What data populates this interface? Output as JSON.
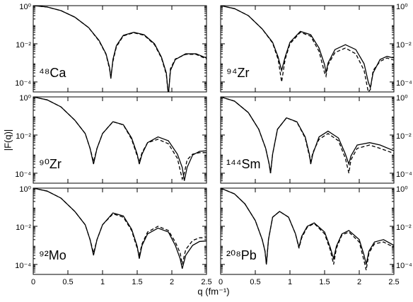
{
  "xlabel": "q (fm⁻¹)",
  "ylabel": "|F(q)|",
  "chart_data": [
    {
      "type": "line",
      "annotation": "⁴⁸Ca",
      "yscale": "log",
      "ytick_side": "left",
      "xtick_labels": false,
      "xlim": [
        0,
        2.5
      ],
      "ylim": [
        3e-05,
        1
      ],
      "xticks": [
        0,
        0.5,
        1,
        1.5,
        2,
        2.5
      ],
      "yticks": [
        {
          "value": 1,
          "label": "10⁰"
        },
        {
          "value": 0.01,
          "label": "10⁻²"
        },
        {
          "value": 0.0001,
          "label": "10⁻⁴"
        }
      ],
      "x": [
        0,
        0.2,
        0.4,
        0.6,
        0.8,
        0.95,
        1.05,
        1.1,
        1.12,
        1.15,
        1.2,
        1.3,
        1.45,
        1.6,
        1.75,
        1.85,
        1.92,
        1.95,
        1.98,
        2.05,
        2.2,
        2.35,
        2.5
      ],
      "series": [
        {
          "color": "#000000",
          "style": "solid",
          "values": [
            1,
            0.85,
            0.55,
            0.25,
            0.07,
            0.015,
            0.003,
            0.0006,
            0.00015,
            0.0015,
            0.008,
            0.028,
            0.04,
            0.03,
            0.01,
            0.002,
            0.0003,
            2e-05,
            0.0004,
            0.0015,
            0.003,
            0.003,
            0.0018
          ]
        },
        {
          "color": "#000000",
          "style": "dashed",
          "values": [
            1,
            0.85,
            0.55,
            0.25,
            0.07,
            0.014,
            0.0028,
            0.0005,
            0.0002,
            0.0012,
            0.007,
            0.026,
            0.038,
            0.028,
            0.009,
            0.0018,
            0.00025,
            2e-05,
            0.0005,
            0.0016,
            0.0028,
            0.0028,
            0.0016
          ]
        }
      ]
    },
    {
      "type": "line",
      "annotation": "⁹⁴Zr",
      "yscale": "log",
      "ytick_side": "right",
      "xtick_labels": false,
      "xlim": [
        0,
        2.5
      ],
      "ylim": [
        3e-05,
        1
      ],
      "xticks": [
        0,
        0.5,
        1,
        1.5,
        2,
        2.5
      ],
      "yticks": [
        {
          "value": 1,
          "label": "10⁰"
        },
        {
          "value": 0.01,
          "label": "10⁻²"
        },
        {
          "value": 0.0001,
          "label": "10⁻⁴"
        }
      ],
      "x": [
        0,
        0.2,
        0.4,
        0.6,
        0.75,
        0.83,
        0.88,
        0.93,
        1.0,
        1.15,
        1.3,
        1.42,
        1.5,
        1.52,
        1.55,
        1.65,
        1.8,
        1.95,
        2.07,
        2.13,
        2.16,
        2.2,
        2.3,
        2.4,
        2.5
      ],
      "series": [
        {
          "color": "#000000",
          "style": "solid",
          "values": [
            1,
            0.7,
            0.3,
            0.06,
            0.012,
            0.002,
            0.0004,
            0.002,
            0.012,
            0.045,
            0.03,
            0.006,
            0.0008,
            0.0003,
            0.001,
            0.005,
            0.009,
            0.005,
            0.0009,
            0.0001,
            5e-05,
            0.0003,
            0.0015,
            0.0022,
            0.0018
          ]
        },
        {
          "color": "#000000",
          "style": "dashed",
          "values": [
            1,
            0.7,
            0.3,
            0.06,
            0.011,
            0.0015,
            0.0001,
            0.0015,
            0.01,
            0.04,
            0.025,
            0.004,
            0.0003,
            0.0002,
            0.0008,
            0.0035,
            0.006,
            0.003,
            0.0004,
            3e-05,
            4e-05,
            0.0004,
            0.0012,
            0.0018,
            0.0014
          ]
        }
      ]
    },
    {
      "type": "line",
      "annotation": "⁹⁰Zr",
      "yscale": "log",
      "ytick_side": "left",
      "xtick_labels": false,
      "xlim": [
        0,
        2.5
      ],
      "ylim": [
        3e-05,
        1
      ],
      "xticks": [
        0,
        0.5,
        1,
        1.5,
        2,
        2.5
      ],
      "yticks": [
        {
          "value": 1,
          "label": "10⁰"
        },
        {
          "value": 0.01,
          "label": "10⁻²"
        },
        {
          "value": 0.0001,
          "label": "10⁻⁴"
        }
      ],
      "x": [
        0,
        0.2,
        0.4,
        0.6,
        0.75,
        0.82,
        0.87,
        0.92,
        1.0,
        1.15,
        1.3,
        1.42,
        1.5,
        1.53,
        1.57,
        1.65,
        1.8,
        1.95,
        2.08,
        2.15,
        2.18,
        2.22,
        2.3,
        2.4,
        2.5
      ],
      "series": [
        {
          "color": "#000000",
          "style": "solid",
          "values": [
            1,
            0.7,
            0.3,
            0.06,
            0.012,
            0.002,
            0.0003,
            0.002,
            0.012,
            0.05,
            0.035,
            0.007,
            0.001,
            0.0003,
            0.001,
            0.004,
            0.008,
            0.005,
            0.001,
            0.0002,
            4e-05,
            0.0002,
            0.0009,
            0.0014,
            0.0015
          ]
        },
        {
          "color": "#000000",
          "style": "dashed",
          "values": [
            1,
            0.7,
            0.3,
            0.06,
            0.012,
            0.002,
            0.0004,
            0.002,
            0.012,
            0.05,
            0.034,
            0.006,
            0.0008,
            0.0004,
            0.0012,
            0.004,
            0.006,
            0.0035,
            0.0006,
            5e-05,
            0.0001,
            0.0005,
            0.001,
            0.0012,
            0.0012
          ]
        }
      ]
    },
    {
      "type": "line",
      "annotation": "¹⁴⁴Sm",
      "yscale": "log",
      "ytick_side": "right",
      "xtick_labels": false,
      "xlim": [
        0,
        2.5
      ],
      "ylim": [
        3e-05,
        1
      ],
      "xticks": [
        0,
        0.5,
        1,
        1.5,
        2,
        2.5
      ],
      "yticks": [
        {
          "value": 1,
          "label": "10⁰"
        },
        {
          "value": 0.01,
          "label": "10⁻²"
        },
        {
          "value": 0.0001,
          "label": "10⁻⁴"
        }
      ],
      "x": [
        0,
        0.2,
        0.4,
        0.55,
        0.65,
        0.7,
        0.72,
        0.75,
        0.82,
        0.95,
        1.1,
        1.22,
        1.28,
        1.3,
        1.33,
        1.42,
        1.55,
        1.7,
        1.8,
        1.85,
        1.88,
        1.97,
        2.15,
        2.3,
        2.5
      ],
      "series": [
        {
          "color": "#000000",
          "style": "solid",
          "values": [
            1,
            0.6,
            0.15,
            0.02,
            0.002,
            0.0003,
            0.0001,
            0.001,
            0.02,
            0.08,
            0.05,
            0.008,
            0.001,
            0.0003,
            0.001,
            0.008,
            0.016,
            0.007,
            0.001,
            0.0003,
            0.0008,
            0.003,
            0.004,
            0.003,
            0.0015
          ]
        },
        {
          "color": "#000000",
          "style": "dashed",
          "values": [
            1,
            0.6,
            0.15,
            0.02,
            0.002,
            0.0003,
            0.0001,
            0.001,
            0.02,
            0.08,
            0.048,
            0.007,
            0.0008,
            0.0004,
            0.0012,
            0.006,
            0.012,
            0.005,
            0.0006,
            0.0001,
            0.0005,
            0.002,
            0.003,
            0.002,
            0.0011
          ]
        }
      ]
    },
    {
      "type": "line",
      "annotation": "⁹²Mo",
      "yscale": "log",
      "ytick_side": "left",
      "xtick_labels": true,
      "xlim": [
        0,
        2.5
      ],
      "ylim": [
        3e-05,
        1
      ],
      "xticks": [
        0,
        0.5,
        1,
        1.5,
        2,
        2.5
      ],
      "yticks": [
        {
          "value": 1,
          "label": "10⁰"
        },
        {
          "value": 0.01,
          "label": "10⁻²"
        },
        {
          "value": 0.0001,
          "label": "10⁻⁴"
        }
      ],
      "x": [
        0,
        0.2,
        0.4,
        0.6,
        0.75,
        0.82,
        0.87,
        0.92,
        1.0,
        1.15,
        1.3,
        1.42,
        1.5,
        1.53,
        1.57,
        1.65,
        1.8,
        1.95,
        2.05,
        2.12,
        2.15,
        2.2,
        2.3,
        2.4,
        2.5
      ],
      "series": [
        {
          "color": "#000000",
          "style": "solid",
          "values": [
            1,
            0.7,
            0.3,
            0.06,
            0.012,
            0.002,
            0.0003,
            0.002,
            0.012,
            0.05,
            0.035,
            0.007,
            0.0009,
            0.0002,
            0.001,
            0.004,
            0.008,
            0.005,
            0.001,
            0.0002,
            6e-05,
            0.0003,
            0.001,
            0.0016,
            0.0017
          ]
        },
        {
          "color": "#000000",
          "style": "dashed",
          "values": [
            1,
            0.7,
            0.3,
            0.06,
            0.012,
            0.002,
            0.0004,
            0.002,
            0.012,
            0.045,
            0.03,
            0.006,
            0.0007,
            0.0003,
            0.0012,
            0.005,
            0.01,
            0.006,
            0.0015,
            0.0004,
            0.0001,
            0.0006,
            0.0018,
            0.0025,
            0.0025
          ]
        }
      ]
    },
    {
      "type": "line",
      "annotation": "²⁰⁸Pb",
      "yscale": "log",
      "ytick_side": "right",
      "xtick_labels": true,
      "xlim": [
        0,
        2.5
      ],
      "ylim": [
        3e-05,
        1
      ],
      "xticks": [
        0,
        0.5,
        1,
        1.5,
        2,
        2.5
      ],
      "yticks": [
        {
          "value": 1,
          "label": "10⁰"
        },
        {
          "value": 0.01,
          "label": "10⁻²"
        },
        {
          "value": 0.0001,
          "label": "10⁻⁴"
        }
      ],
      "x": [
        0,
        0.2,
        0.35,
        0.5,
        0.6,
        0.64,
        0.66,
        0.69,
        0.75,
        0.85,
        0.98,
        1.08,
        1.13,
        1.17,
        1.25,
        1.35,
        1.5,
        1.58,
        1.63,
        1.67,
        1.75,
        1.85,
        2.0,
        2.07,
        2.1,
        2.14,
        2.22,
        2.35,
        2.5
      ],
      "series": [
        {
          "color": "#000000",
          "style": "solid",
          "values": [
            1,
            0.5,
            0.15,
            0.02,
            0.002,
            0.0005,
            0.0001,
            0.002,
            0.03,
            0.06,
            0.03,
            0.004,
            0.0008,
            0.003,
            0.01,
            0.015,
            0.005,
            0.0008,
            0.0002,
            0.0009,
            0.004,
            0.006,
            0.002,
            0.0003,
            0.0001,
            0.0005,
            0.0015,
            0.002,
            0.001
          ]
        },
        {
          "color": "#000000",
          "style": "dashed",
          "values": [
            1,
            0.5,
            0.15,
            0.02,
            0.002,
            0.0005,
            0.0001,
            0.002,
            0.03,
            0.06,
            0.03,
            0.004,
            0.0007,
            0.0025,
            0.009,
            0.014,
            0.004,
            0.0006,
            0.0001,
            0.0007,
            0.0035,
            0.005,
            0.0015,
            0.00015,
            5e-05,
            0.0004,
            0.0012,
            0.0015,
            0.0008
          ]
        }
      ]
    }
  ]
}
